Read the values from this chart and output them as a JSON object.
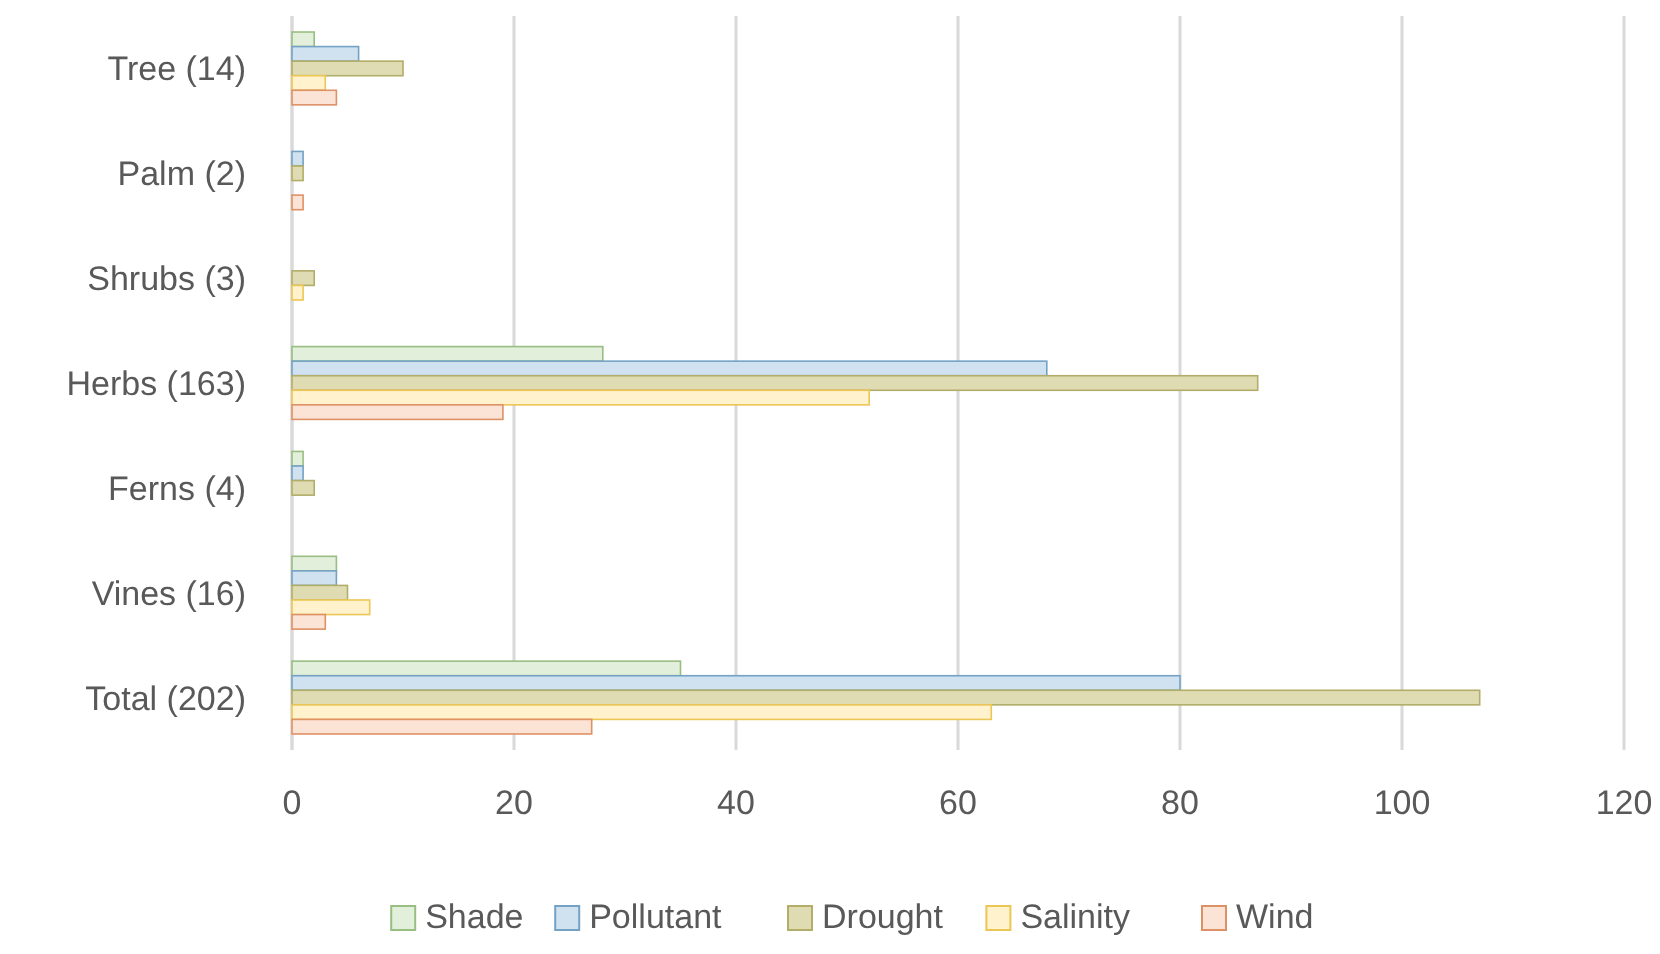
{
  "chart_data": {
    "type": "bar",
    "orientation": "horizontal",
    "categories": [
      "Tree (14)",
      "Palm (2)",
      "Shrubs (3)",
      "Herbs (163)",
      "Ferns (4)",
      "Vines (16)",
      "Total (202)"
    ],
    "series": [
      {
        "name": "Shade",
        "color": "#e2efda",
        "values": [
          2,
          0,
          0,
          28,
          1,
          4,
          35
        ]
      },
      {
        "name": "Pollutant",
        "color": "#d0e2f0",
        "values": [
          6,
          1,
          0,
          68,
          1,
          4,
          80
        ]
      },
      {
        "name": "Drought",
        "color": "#dfdcb4",
        "values": [
          10,
          1,
          2,
          87,
          2,
          5,
          107
        ]
      },
      {
        "name": "Salinity",
        "color": "#fff2cc",
        "values": [
          3,
          0,
          1,
          52,
          0,
          7,
          63
        ]
      },
      {
        "name": "Wind",
        "color": "#fbe3d6",
        "values": [
          4,
          1,
          0,
          19,
          0,
          3,
          27
        ]
      }
    ],
    "xlim": [
      0,
      120
    ],
    "xticks": [
      0,
      20,
      40,
      60,
      80,
      100,
      120
    ],
    "grid": "x",
    "legend": "bottom"
  }
}
